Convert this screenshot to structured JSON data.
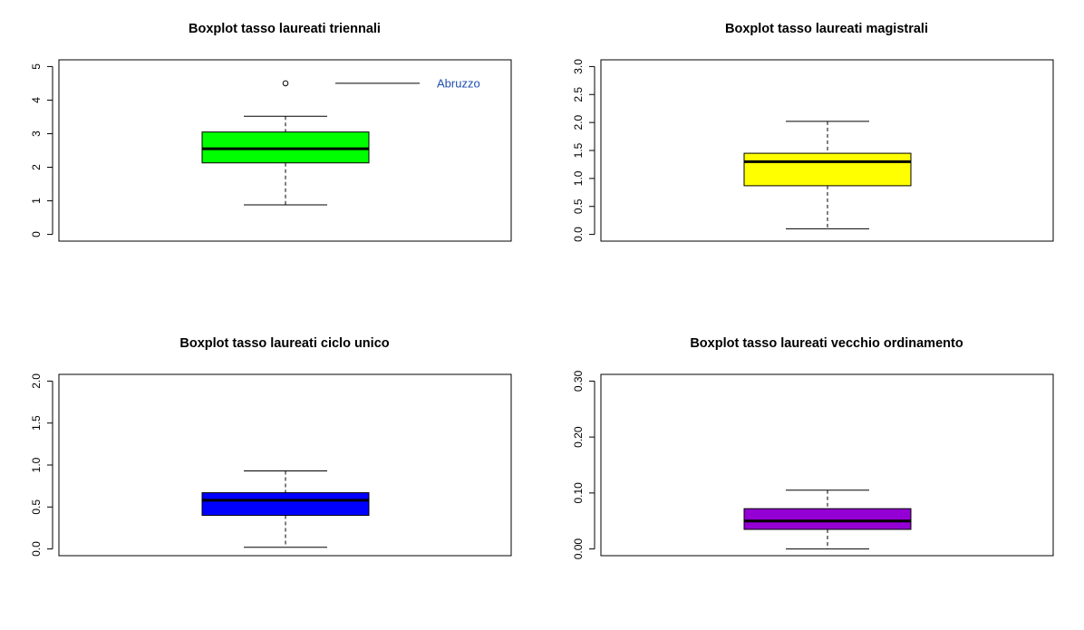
{
  "chart_data": [
    {
      "type": "boxplot",
      "title": "Boxplot tasso laureati triennali",
      "ylim": [
        0,
        5
      ],
      "yticks": [
        "0",
        "1",
        "2",
        "3",
        "4",
        "5"
      ],
      "color": "#00ff00",
      "box": {
        "min": 0.88,
        "q1": 2.13,
        "median": 2.55,
        "q3": 3.05,
        "max": 3.52
      },
      "outliers": [
        4.5
      ],
      "annotation": {
        "text": "Abruzzo",
        "y": 4.5
      }
    },
    {
      "type": "boxplot",
      "title": "Boxplot tasso laureati magistrali",
      "ylim": [
        0,
        3
      ],
      "yticks": [
        "0.0",
        "0.5",
        "1.0",
        "1.5",
        "2.0",
        "2.5",
        "3.0"
      ],
      "color": "#ffff00",
      "box": {
        "min": 0.1,
        "q1": 0.87,
        "median": 1.3,
        "q3": 1.45,
        "max": 2.02
      },
      "outliers": []
    },
    {
      "type": "boxplot",
      "title": "Boxplot tasso laureati ciclo unico",
      "ylim": [
        0,
        2
      ],
      "yticks": [
        "0.0",
        "0.5",
        "1.0",
        "1.5",
        "2.0"
      ],
      "color": "#0000ff",
      "box": {
        "min": 0.02,
        "q1": 0.4,
        "median": 0.58,
        "q3": 0.67,
        "max": 0.93
      },
      "outliers": []
    },
    {
      "type": "boxplot",
      "title": "Boxplot tasso laureati vecchio ordinamento",
      "ylim": [
        0,
        0.3
      ],
      "yticks": [
        "0.00",
        "0.10",
        "0.20",
        "0.30"
      ],
      "color": "#9400d3",
      "box": {
        "min": 0.0,
        "q1": 0.035,
        "median": 0.05,
        "q3": 0.072,
        "max": 0.105
      },
      "outliers": []
    }
  ]
}
